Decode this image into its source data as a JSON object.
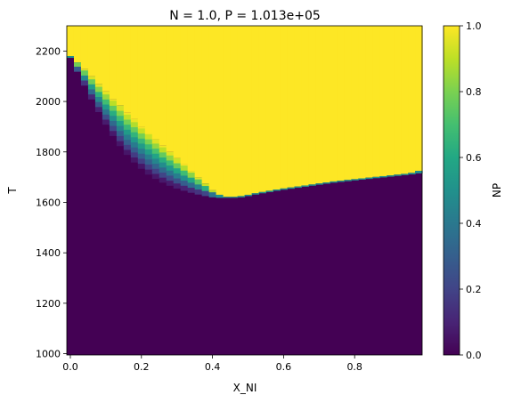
{
  "chart_data": {
    "type": "heatmap",
    "title": "N = 1.0, P = 1.013e+05",
    "xlabel": "X_NI",
    "ylabel": "T",
    "colorbar_label": "NP",
    "xlim": [
      -0.01,
      0.99
    ],
    "ylim": [
      995,
      2300
    ],
    "clim": [
      0.0,
      1.0
    ],
    "colormap": "viridis",
    "x_ticks": [
      0.0,
      0.2,
      0.4,
      0.6,
      0.8
    ],
    "x_tick_labels": [
      "0.0",
      "0.2",
      "0.4",
      "0.6",
      "0.8"
    ],
    "y_ticks": [
      1000,
      1200,
      1400,
      1600,
      1800,
      2000,
      2200
    ],
    "y_tick_labels": [
      "1000",
      "1200",
      "1400",
      "1600",
      "1800",
      "2000",
      "2200"
    ],
    "colorbar_ticks": [
      0.0,
      0.2,
      0.4,
      0.6,
      0.8,
      1.0
    ],
    "colorbar_tick_labels": [
      "0.0",
      "0.2",
      "0.4",
      "0.6",
      "0.8",
      "1.0"
    ],
    "grid": false,
    "x_cell_width": 0.02,
    "y_cell_height": 20,
    "solidus": {
      "x": [
        0.0,
        0.02,
        0.04,
        0.06,
        0.08,
        0.1,
        0.12,
        0.14,
        0.16,
        0.18,
        0.2,
        0.22,
        0.24,
        0.26,
        0.28,
        0.3,
        0.32,
        0.34,
        0.36,
        0.38,
        0.4,
        0.42,
        0.44,
        0.46,
        0.48,
        0.5,
        0.52,
        0.54,
        0.56,
        0.58,
        0.6,
        0.62,
        0.64,
        0.66,
        0.68,
        0.7,
        0.72,
        0.74,
        0.76,
        0.78,
        0.8,
        0.82,
        0.84,
        0.86,
        0.88,
        0.9,
        0.92,
        0.94,
        0.96,
        0.98
      ],
      "T": [
        2175,
        2120,
        2065,
        2010,
        1960,
        1910,
        1865,
        1825,
        1790,
        1760,
        1735,
        1712,
        1695,
        1680,
        1668,
        1657,
        1648,
        1640,
        1633,
        1627,
        1622,
        1620,
        1620,
        1620,
        1622,
        1627,
        1633,
        1638,
        1643,
        1648,
        1652,
        1656,
        1660,
        1664,
        1668,
        1672,
        1676,
        1680,
        1683,
        1686,
        1689,
        1692,
        1695,
        1698,
        1701,
        1704,
        1707,
        1710,
        1713,
        1717
      ]
    },
    "liquidus": {
      "x": [
        0.0,
        0.02,
        0.04,
        0.06,
        0.08,
        0.1,
        0.12,
        0.14,
        0.16,
        0.18,
        0.2,
        0.22,
        0.24,
        0.26,
        0.28,
        0.3,
        0.32,
        0.34,
        0.36,
        0.38,
        0.4,
        0.42,
        0.44,
        0.46,
        0.48,
        0.5,
        0.52,
        0.54,
        0.56,
        0.58,
        0.6,
        0.62,
        0.64,
        0.66,
        0.68,
        0.7,
        0.72,
        0.74,
        0.76,
        0.78,
        0.8,
        0.82,
        0.84,
        0.86,
        0.88,
        0.9,
        0.92,
        0.94,
        0.96,
        0.98
      ],
      "T": [
        2180,
        2155,
        2130,
        2100,
        2070,
        2040,
        2010,
        1985,
        1955,
        1930,
        1900,
        1875,
        1850,
        1825,
        1800,
        1775,
        1750,
        1725,
        1700,
        1675,
        1648,
        1630,
        1622,
        1622,
        1625,
        1630,
        1636,
        1641,
        1646,
        1651,
        1655,
        1659,
        1663,
        1667,
        1671,
        1675,
        1679,
        1683,
        1686,
        1689,
        1692,
        1695,
        1698,
        1701,
        1704,
        1707,
        1710,
        1713,
        1717,
        1725
      ]
    }
  }
}
